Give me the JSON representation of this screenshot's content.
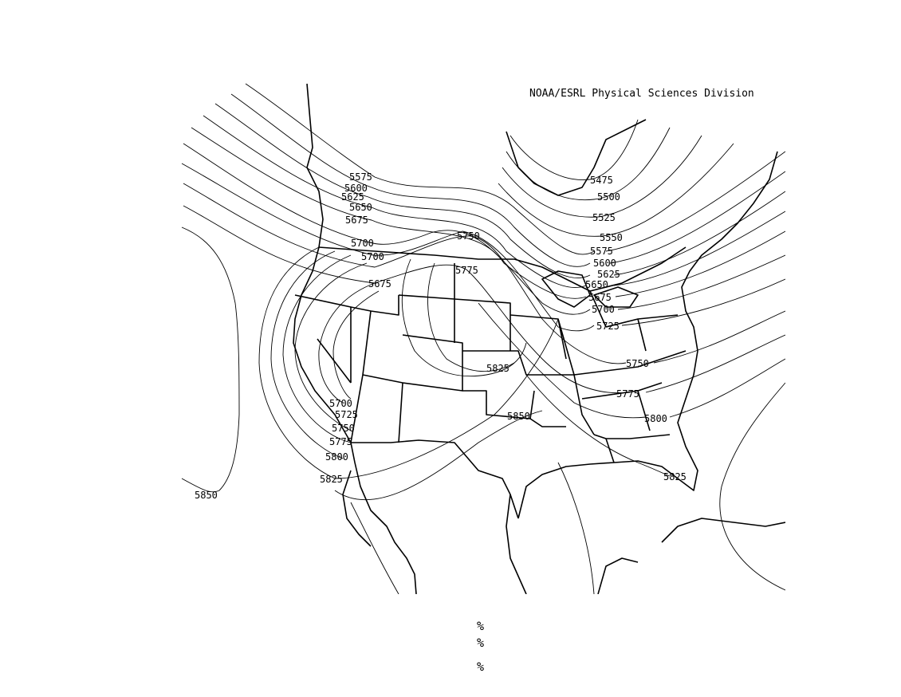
{
  "credit": "NOAA/ESRL Physical Sciences Division",
  "contour_labels": [
    "5475",
    "5500",
    "5525",
    "5550",
    "5575",
    "5600",
    "5625",
    "5650",
    "5675",
    "5700",
    "5725",
    "5750",
    "5775",
    "5800",
    "5825",
    "5850"
  ],
  "footer_marks": [
    "%",
    "%",
    "%"
  ]
}
